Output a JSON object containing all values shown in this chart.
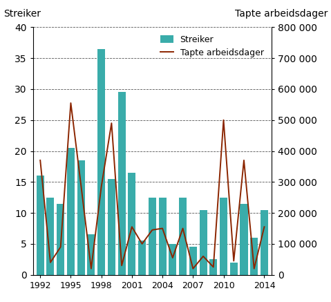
{
  "years": [
    1992,
    1993,
    1994,
    1995,
    1996,
    1997,
    1998,
    1999,
    2000,
    2001,
    2002,
    2003,
    2004,
    2005,
    2006,
    2007,
    2008,
    2009,
    2010,
    2011,
    2012,
    2013,
    2014
  ],
  "streiker": [
    16,
    12.5,
    11.5,
    20.5,
    18.5,
    6.5,
    36.5,
    15.5,
    29.5,
    16.5,
    5.5,
    12.5,
    12.5,
    5,
    12.5,
    4.5,
    10.5,
    2.5,
    12.5,
    2,
    11.5,
    6,
    10.5
  ],
  "tapte_arbeidsdager": [
    370000,
    40000,
    90000,
    555000,
    290000,
    20000,
    285000,
    490000,
    30000,
    155000,
    100000,
    145000,
    150000,
    55000,
    150000,
    20000,
    60000,
    25000,
    500000,
    45000,
    370000,
    20000,
    155000
  ],
  "bar_color": "#3aacaa",
  "line_color": "#8b2500",
  "label_left": "Streiker",
  "label_right": "Tapte arbeidsdager",
  "ylim_left": [
    0,
    40
  ],
  "ylim_right": [
    0,
    800000
  ],
  "yticks_left": [
    0,
    5,
    10,
    15,
    20,
    25,
    30,
    35,
    40
  ],
  "yticks_right": [
    0,
    100000,
    200000,
    300000,
    400000,
    500000,
    600000,
    700000,
    800000
  ],
  "legend_labels": [
    "Streiker",
    "Tapte arbeidsdager"
  ],
  "xtick_labels": [
    "1992",
    "1995",
    "1998",
    "2001",
    "2004",
    "2007",
    "2010",
    "2014"
  ],
  "background_color": "#ffffff",
  "grid_color": "#555555"
}
